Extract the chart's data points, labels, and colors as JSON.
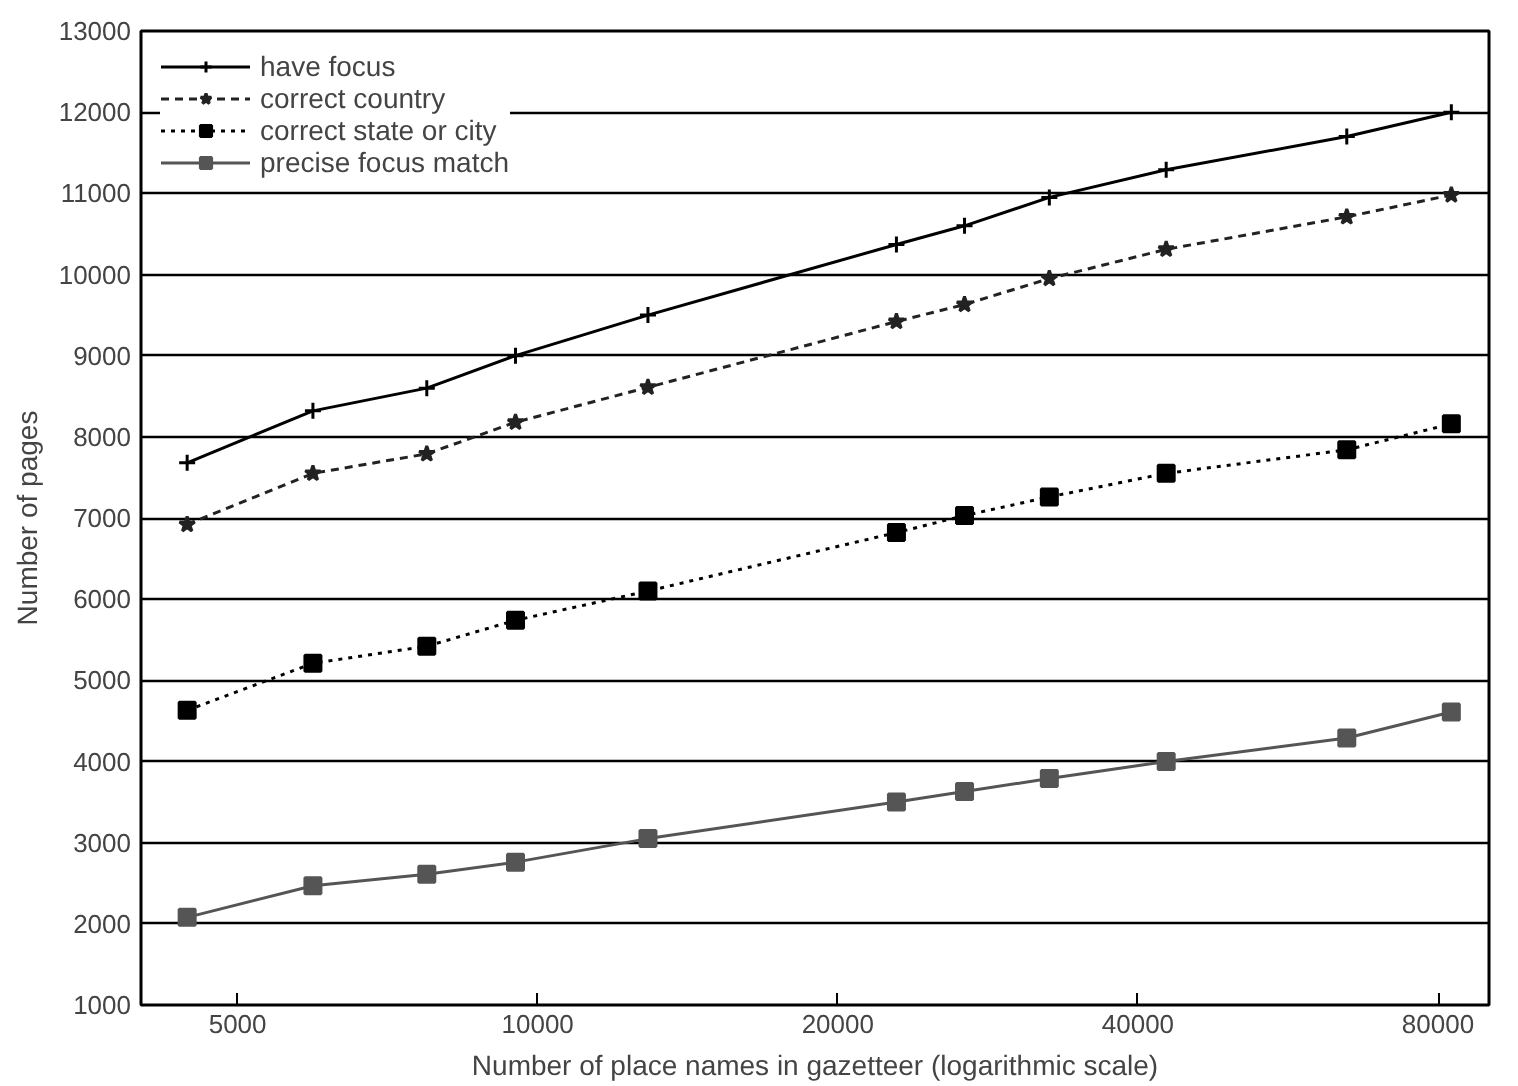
{
  "chart_data": {
    "type": "line",
    "xlabel": "Number of place names in gazetteer (logarithmic scale)",
    "ylabel": "Number of pages",
    "log": "x",
    "xlim": [
      4000,
      90000
    ],
    "xticks": [
      5000,
      10000,
      20000,
      40000,
      80000
    ],
    "ylim": [
      1000,
      13000
    ],
    "yticks": [
      1000,
      2000,
      3000,
      4000,
      5000,
      6000,
      7000,
      8000,
      9000,
      10000,
      11000,
      12000,
      13000
    ],
    "grid": "y",
    "legend": "top left",
    "x": [
      4450,
      5950,
      7740,
      9500,
      12900,
      22900,
      26800,
      32600,
      42700,
      64800,
      82500
    ],
    "series": [
      {
        "name": "have focus",
        "color": "#000000",
        "marker": "cross",
        "line_style": "solid",
        "values": [
          7680,
          8320,
          8600,
          9000,
          9500,
          10370,
          10600,
          10950,
          11290,
          11700,
          12000
        ]
      },
      {
        "name": "correct country",
        "color": "#222222",
        "marker": "star",
        "line_style": "dashed",
        "values": [
          6920,
          7550,
          7790,
          8180,
          8610,
          9420,
          9630,
          9950,
          10310,
          10710,
          10980
        ]
      },
      {
        "name": "correct state or city",
        "color": "#000000",
        "marker": "square",
        "line_style": "dotted",
        "values": [
          4630,
          5210,
          5420,
          5740,
          6100,
          6820,
          7030,
          7260,
          7550,
          7840,
          8160
        ]
      },
      {
        "name": "precise focus match",
        "color": "#555555",
        "marker": "square",
        "line_style": "solid",
        "values": [
          2080,
          2470,
          2610,
          2760,
          3050,
          3500,
          3630,
          3790,
          4000,
          4290,
          4610
        ]
      }
    ]
  }
}
